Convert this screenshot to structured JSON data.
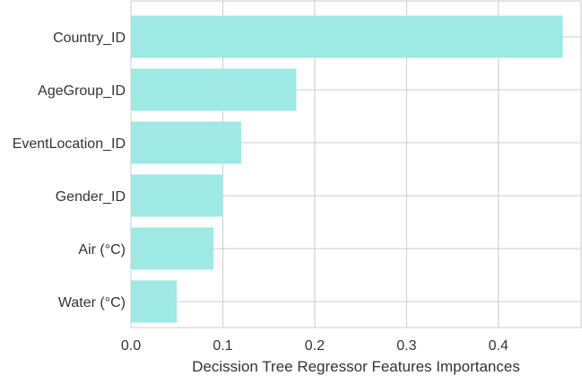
{
  "chart_data": {
    "type": "bar",
    "orientation": "horizontal",
    "categories": [
      "Country_ID",
      "AgeGroup_ID",
      "EventLocation_ID",
      "Gender_ID",
      "Air (°C)",
      "Water (°C)"
    ],
    "values": [
      0.47,
      0.18,
      0.12,
      0.1,
      0.09,
      0.05
    ],
    "title": "",
    "xlabel": "Decission Tree Regressor Features Importances",
    "ylabel": "",
    "xlim": [
      0,
      0.49
    ],
    "xticks": [
      "0.0",
      "0.1",
      "0.2",
      "0.3",
      "0.4"
    ],
    "grid": true,
    "bar_color": "#9ee9e3",
    "grid_color": "#cccccc",
    "text_color": "#333333"
  }
}
